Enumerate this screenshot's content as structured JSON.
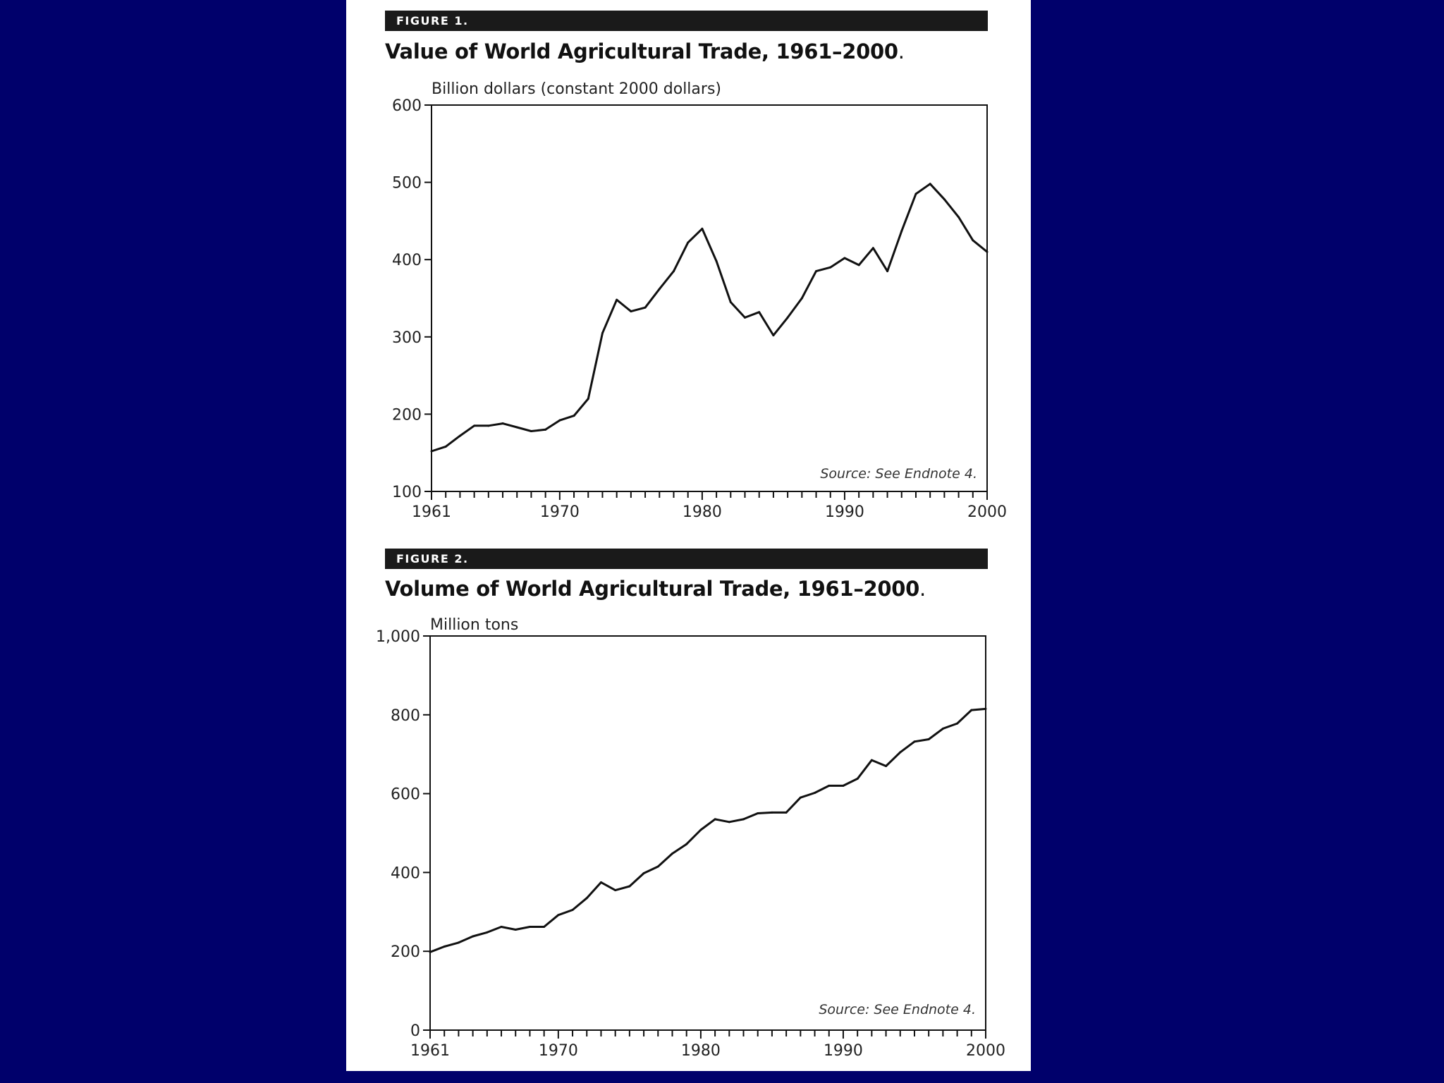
{
  "colors": {
    "background": "#00006b",
    "panel": "#ffffff",
    "ink": "#111111"
  },
  "chart_data": [
    {
      "type": "line",
      "figure_label": "FIGURE 1.",
      "title": "Value of World Agricultural Trade, 1961–2000",
      "title_suffix": ".",
      "ylabel": "Billion dollars (constant 2000 dollars)",
      "xlabel": "",
      "source": "Source: See Endnote 4.",
      "xlim": [
        1961,
        2000
      ],
      "ylim": [
        100,
        600
      ],
      "yticks": [
        100,
        200,
        300,
        400,
        500,
        600
      ],
      "ytick_labels": [
        "100",
        "200",
        "300",
        "400",
        "500",
        "600"
      ],
      "xticks_labeled": [
        1961,
        1970,
        1980,
        1990,
        2000
      ],
      "xtick_labels": [
        "1961",
        "1970",
        "1980",
        "1990",
        "2000"
      ],
      "x": [
        1961,
        1962,
        1963,
        1964,
        1965,
        1966,
        1967,
        1968,
        1969,
        1970,
        1971,
        1972,
        1973,
        1974,
        1975,
        1976,
        1977,
        1978,
        1979,
        1980,
        1981,
        1982,
        1983,
        1984,
        1985,
        1986,
        1987,
        1988,
        1989,
        1990,
        1991,
        1992,
        1993,
        1994,
        1995,
        1996,
        1997,
        1998,
        1999,
        2000
      ],
      "values": [
        152,
        158,
        172,
        185,
        185,
        188,
        183,
        178,
        180,
        192,
        198,
        220,
        305,
        348,
        333,
        338,
        362,
        385,
        422,
        440,
        398,
        345,
        325,
        332,
        302,
        325,
        350,
        385,
        390,
        402,
        393,
        415,
        385,
        437,
        485,
        498,
        478,
        455,
        425,
        410
      ]
    },
    {
      "type": "line",
      "figure_label": "FIGURE 2.",
      "title": "Volume of World Agricultural Trade, 1961–2000",
      "title_suffix": ".",
      "ylabel": "Million tons",
      "xlabel": "",
      "source": "Source: See Endnote 4.",
      "xlim": [
        1961,
        2000
      ],
      "ylim": [
        0,
        1000
      ],
      "yticks": [
        0,
        200,
        400,
        600,
        800,
        1000
      ],
      "ytick_labels": [
        "0",
        "200",
        "400",
        "600",
        "800",
        "1,000"
      ],
      "xticks_labeled": [
        1961,
        1970,
        1980,
        1990,
        2000
      ],
      "xtick_labels": [
        "1961",
        "1970",
        "1980",
        "1990",
        "2000"
      ],
      "x": [
        1961,
        1962,
        1963,
        1964,
        1965,
        1966,
        1967,
        1968,
        1969,
        1970,
        1971,
        1972,
        1973,
        1974,
        1975,
        1976,
        1977,
        1978,
        1979,
        1980,
        1981,
        1982,
        1983,
        1984,
        1985,
        1986,
        1987,
        1988,
        1989,
        1990,
        1991,
        1992,
        1993,
        1994,
        1995,
        1996,
        1997,
        1998,
        1999,
        2000
      ],
      "values": [
        198,
        212,
        222,
        238,
        248,
        262,
        255,
        262,
        262,
        292,
        305,
        335,
        375,
        355,
        365,
        398,
        415,
        448,
        472,
        508,
        535,
        528,
        535,
        550,
        552,
        552,
        590,
        602,
        620,
        620,
        638,
        685,
        670,
        705,
        732,
        738,
        765,
        778,
        812,
        815
      ]
    }
  ]
}
